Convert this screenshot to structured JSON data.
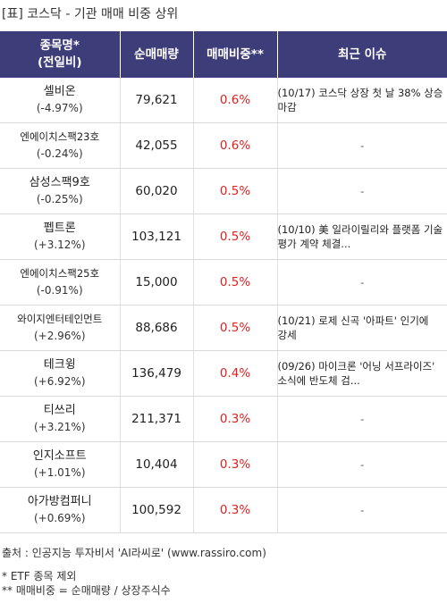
{
  "title": "[표] 코스닥 - 기관 매매 비중 상위",
  "header": {
    "col1_line1": "종목명*",
    "col1_line2": "(전일비)",
    "col2": "순매매량",
    "col3": "매매비중**",
    "col4": "최근 이슈"
  },
  "rows": [
    {
      "name": "셀비온",
      "change": "(-4.97%)",
      "volume": "79,621",
      "ratio": "0.6%",
      "issue": "(10/17) 코스닥 상장 첫 날 38% 상승 마감"
    },
    {
      "name": "엔에이치스팩23호",
      "change": "(-0.24%)",
      "volume": "42,055",
      "ratio": "0.6%",
      "issue": "-"
    },
    {
      "name": "삼성스팩9호",
      "change": "(-0.25%)",
      "volume": "60,020",
      "ratio": "0.5%",
      "issue": "-"
    },
    {
      "name": "펩트론",
      "change": "(+3.12%)",
      "volume": "103,121",
      "ratio": "0.5%",
      "issue": "(10/10) 美 일라이릴리와 플랫폼 기술 평가 계약 체결..."
    },
    {
      "name": "엔에이치스팩25호",
      "change": "(-0.91%)",
      "volume": "15,000",
      "ratio": "0.5%",
      "issue": "-"
    },
    {
      "name": "와이지엔터테인먼트",
      "change": "(+2.96%)",
      "volume": "88,686",
      "ratio": "0.5%",
      "issue": "(10/21) 로제 신곡 '아파트' 인기에 강세"
    },
    {
      "name": "테크윙",
      "change": "(+6.92%)",
      "volume": "136,479",
      "ratio": "0.4%",
      "issue": "(09/26) 마이크론 '어닝 서프라이즈' 소식에 반도체 검..."
    },
    {
      "name": "티쓰리",
      "change": "(+3.21%)",
      "volume": "211,371",
      "ratio": "0.3%",
      "issue": "-"
    },
    {
      "name": "인지소프트",
      "change": "(+1.01%)",
      "volume": "10,404",
      "ratio": "0.3%",
      "issue": "-"
    },
    {
      "name": "아가방컴퍼니",
      "change": "(+0.69%)",
      "volume": "100,592",
      "ratio": "0.3%",
      "issue": "-"
    }
  ],
  "footer": {
    "source": "출처 : 인공지능 투자비서 'AI라씨로' (www.rassiro.com)",
    "note1": "* ETF 종목 제외",
    "note2": "** 매매비중 = 순매매량 / 상장주식수"
  },
  "colors": {
    "header_bg": "#3d3d7a",
    "header_text": "#ffffff",
    "ratio_text": "#e02020"
  }
}
